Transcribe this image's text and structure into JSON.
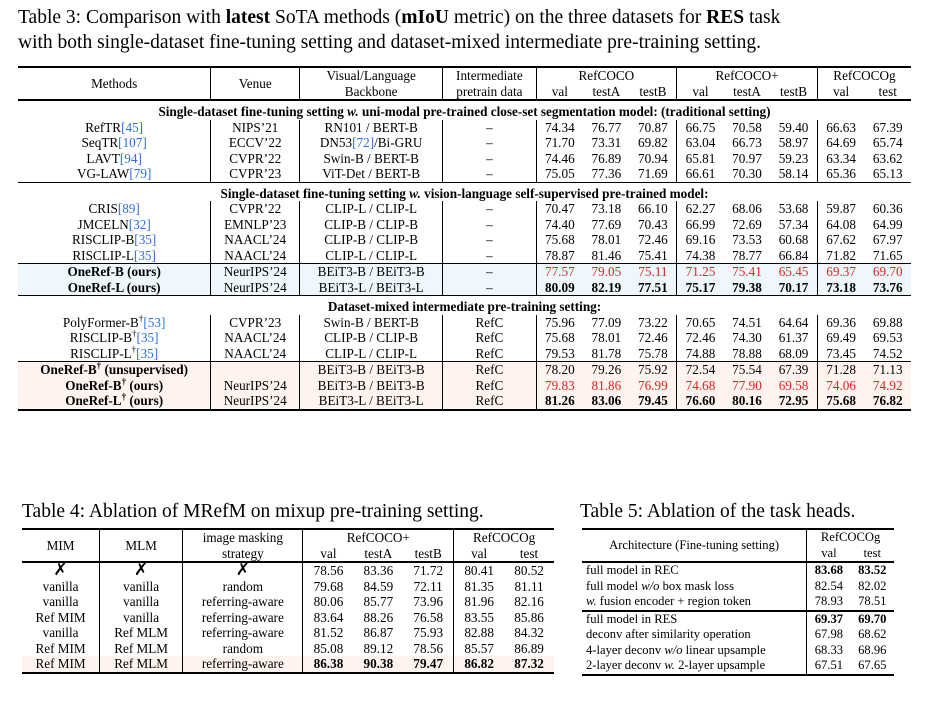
{
  "table3": {
    "caption_a": "Table 3: Comparison with ",
    "caption_b": "latest",
    "caption_c": " SoTA methods (",
    "caption_d": "mIoU",
    "caption_e": " metric) on the three datasets for ",
    "caption_f": "RES",
    "caption_g": " task",
    "caption_line2": "with both single-dataset fine-tuning setting and dataset-mixed intermediate pre-training setting.",
    "h_methods": "Methods",
    "h_venue": "Venue",
    "h_backbone_1": "Visual/Language",
    "h_backbone_2": "Backbone",
    "h_inter_1": "Intermediate",
    "h_inter_2": "pretrain data",
    "h_refcoco": "RefCOCO",
    "h_refcocop": "RefCOCO+",
    "h_refcocog": "RefCOCOg",
    "h_val": "val",
    "h_testA": "testA",
    "h_testB": "testB",
    "h_test": "test",
    "sec1_a": "Single-dataset fine-tuning setting ",
    "sec1_w": "w.",
    "sec1_b": " uni-modal pre-trained close-set segmentation model: (traditional setting)",
    "sec2_a": "Single-dataset fine-tuning setting ",
    "sec2_w": "w.",
    "sec2_b": " vision-language self-supervised pre-trained model:",
    "sec3": "Dataset-mixed intermediate pre-training setting:",
    "g1": [
      {
        "name": "RefTR",
        "ref": "[45]",
        "venue": "NIPS’21",
        "bb": "RN101 / BERT-B",
        "pre": "–",
        "v": [
          "74.34",
          "76.77",
          "70.87",
          "66.75",
          "70.58",
          "59.40",
          "66.63",
          "67.39"
        ]
      },
      {
        "name": "SeqTR",
        "ref": "[107]",
        "venue": "ECCV’22",
        "bb_a": "DN53",
        "bb_ref": "[72]",
        "bb_b": "/Bi-GRU",
        "pre": "–",
        "v": [
          "71.70",
          "73.31",
          "69.82",
          "63.04",
          "66.73",
          "58.97",
          "64.69",
          "65.74"
        ]
      },
      {
        "name": "LAVT",
        "ref": "[94]",
        "venue": "CVPR’22",
        "bb": "Swin-B / BERT-B",
        "pre": "–",
        "v": [
          "74.46",
          "76.89",
          "70.94",
          "65.81",
          "70.97",
          "59.23",
          "63.34",
          "63.62"
        ]
      },
      {
        "name": "VG-LAW",
        "ref": "[79]",
        "venue": "CVPR’23",
        "bb": "ViT-Det / BERT-B",
        "pre": "–",
        "v": [
          "75.05",
          "77.36",
          "71.69",
          "66.61",
          "70.30",
          "58.14",
          "65.36",
          "65.13"
        ]
      }
    ],
    "g2": [
      {
        "name": "CRIS",
        "ref": "[89]",
        "venue": "CVPR’22",
        "bb": "CLIP-L / CLIP-L",
        "pre": "–",
        "v": [
          "70.47",
          "73.18",
          "66.10",
          "62.27",
          "68.06",
          "53.68",
          "59.87",
          "60.36"
        ]
      },
      {
        "name": "JMCELN",
        "ref": "[32]",
        "venue": "EMNLP’23",
        "bb": "CLIP-B / CLIP-B",
        "pre": "–",
        "v": [
          "74.40",
          "77.69",
          "70.43",
          "66.99",
          "72.69",
          "57.34",
          "64.08",
          "64.99"
        ]
      },
      {
        "name": "RISCLIP-B",
        "ref": "[35]",
        "venue": "NAACL’24",
        "bb": "CLIP-B / CLIP-B",
        "pre": "–",
        "v": [
          "75.68",
          "78.01",
          "72.46",
          "69.16",
          "73.53",
          "60.68",
          "67.62",
          "67.97"
        ]
      },
      {
        "name": "RISCLIP-L",
        "ref": "[35]",
        "venue": "NAACL’24",
        "bb": "CLIP-L / CLIP-L",
        "pre": "–",
        "v": [
          "78.87",
          "81.46",
          "75.41",
          "74.38",
          "78.77",
          "66.84",
          "71.82",
          "71.65"
        ]
      }
    ],
    "g3": [
      {
        "name": "OneRef-B (ours)",
        "venue": "NeurIPS’24",
        "bb": "BEiT3-B / BEiT3-B",
        "pre": "–",
        "v": [
          "77.57",
          "79.05",
          "75.11",
          "71.25",
          "75.41",
          "65.45",
          "69.37",
          "69.70"
        ]
      },
      {
        "name": "OneRef-L (ours)",
        "venue": "NeurIPS’24",
        "bb": "BEiT3-L / BEiT3-L",
        "pre": "–",
        "v": [
          "80.09",
          "82.19",
          "77.51",
          "75.17",
          "79.38",
          "70.17",
          "73.18",
          "73.76"
        ]
      }
    ],
    "g4": [
      {
        "name": "PolyFormer-B",
        "sup": "†",
        "ref": "[53]",
        "venue": "CVPR’23",
        "bb": "Swin-B / BERT-B",
        "pre": "RefC",
        "v": [
          "75.96",
          "77.09",
          "73.22",
          "70.65",
          "74.51",
          "64.64",
          "69.36",
          "69.88"
        ]
      },
      {
        "name": "RISCLIP-B",
        "sup": "†",
        "ref": "[35]",
        "venue": "NAACL’24",
        "bb": "CLIP-B / CLIP-B",
        "pre": "RefC",
        "v": [
          "75.68",
          "78.01",
          "72.46",
          "72.46",
          "74.30",
          "61.37",
          "69.49",
          "69.53"
        ]
      },
      {
        "name": "RISCLIP-L",
        "sup": "†",
        "ref": "[35]",
        "venue": "NAACL’24",
        "bb": "CLIP-L / CLIP-L",
        "pre": "RefC",
        "v": [
          "79.53",
          "81.78",
          "75.78",
          "74.88",
          "78.88",
          "68.09",
          "73.45",
          "74.52"
        ]
      }
    ],
    "g5": [
      {
        "name": "OneRef-B",
        "sup": "†",
        "suffix": " (unsupervised)",
        "venue": "",
        "bb": "BEiT3-B / BEiT3-B",
        "pre": "RefC",
        "v": [
          "78.20",
          "79.26",
          "75.92",
          "72.54",
          "75.54",
          "67.39",
          "71.28",
          "71.13"
        ]
      },
      {
        "name": "OneRef-B",
        "sup": "†",
        "suffix": " (ours)",
        "venue": "NeurIPS’24",
        "bb": "BEiT3-B / BEiT3-B",
        "pre": "RefC",
        "v": [
          "79.83",
          "81.86",
          "76.99",
          "74.68",
          "77.90",
          "69.58",
          "74.06",
          "74.92"
        ]
      },
      {
        "name": "OneRef-L",
        "sup": "†",
        "suffix": " (ours)",
        "venue": "NeurIPS’24",
        "bb": "BEiT3-L / BEiT3-L",
        "pre": "RefC",
        "v": [
          "81.26",
          "83.06",
          "79.45",
          "76.60",
          "80.16",
          "72.95",
          "75.68",
          "76.82"
        ]
      }
    ]
  },
  "table4": {
    "caption": "Table 4: Ablation of MRefM on mixup pre-training setting.",
    "h_mim": "MIM",
    "h_mlm": "MLM",
    "h_strategy_1": "image masking",
    "h_strategy_2": "strategy",
    "h_refcocop": "RefCOCO+",
    "h_refcocog": "RefCOCOg",
    "h_val": "val",
    "h_testA": "testA",
    "h_testB": "testB",
    "h_test": "test",
    "rows": [
      {
        "mim": "✗",
        "mlm": "✗",
        "st": "✗",
        "v": [
          "78.56",
          "83.36",
          "71.72",
          "80.41",
          "80.52"
        ]
      },
      {
        "mim": "vanilla",
        "mlm": "vanilla",
        "st": "random",
        "v": [
          "79.68",
          "84.59",
          "72.11",
          "81.35",
          "81.11"
        ]
      },
      {
        "mim": "vanilla",
        "mlm": "vanilla",
        "st": "referring-aware",
        "v": [
          "80.06",
          "85.77",
          "73.96",
          "81.96",
          "82.16"
        ]
      },
      {
        "mim": "Ref MIM",
        "mlm": "vanilla",
        "st": "referring-aware",
        "v": [
          "83.64",
          "88.26",
          "76.58",
          "83.55",
          "85.86"
        ]
      },
      {
        "mim": "vanilla",
        "mlm": "Ref MLM",
        "st": "referring-aware",
        "v": [
          "81.52",
          "86.87",
          "75.93",
          "82.88",
          "84.32"
        ]
      },
      {
        "mim": "Ref MIM",
        "mlm": "Ref MLM",
        "st": "random",
        "v": [
          "85.08",
          "89.12",
          "78.56",
          "85.57",
          "86.89"
        ]
      },
      {
        "mim": "Ref MIM",
        "mlm": "Ref MLM",
        "st": "referring-aware",
        "v": [
          "86.38",
          "90.38",
          "79.47",
          "86.82",
          "87.32"
        ]
      }
    ]
  },
  "table5": {
    "caption": "Table 5: Ablation of the task heads.",
    "h_arch": "Architecture (Fine-tuning setting)",
    "h_refcocog": "RefCOCOg",
    "h_val": "val",
    "h_test": "test",
    "rec": [
      {
        "a": "full model in REC",
        "v": [
          "83.68",
          "83.52"
        ]
      },
      {
        "a": "full model ",
        "it": "w/o",
        "b": " box mask loss",
        "v": [
          "82.54",
          "82.02"
        ]
      },
      {
        "it0": "w.",
        "b": " fusion encoder + region token",
        "v": [
          "78.93",
          "78.51"
        ]
      }
    ],
    "res": [
      {
        "a": "full model in RES",
        "v": [
          "69.37",
          "69.70"
        ]
      },
      {
        "a": "deconv after similarity operation",
        "v": [
          "67.98",
          "68.62"
        ]
      },
      {
        "a": "4-layer deconv ",
        "it": "w/o",
        "b": " linear upsample",
        "v": [
          "68.33",
          "68.96"
        ]
      },
      {
        "a": "2-layer deconv ",
        "it": "w.",
        "b": " 2-layer upsample",
        "v": [
          "67.51",
          "67.65"
        ]
      }
    ]
  },
  "colors": {
    "red": "#e8211b",
    "link": "#2a6ee8",
    "highlight_blue": "#eef7fb",
    "highlight_pink": "#fff3f0"
  }
}
